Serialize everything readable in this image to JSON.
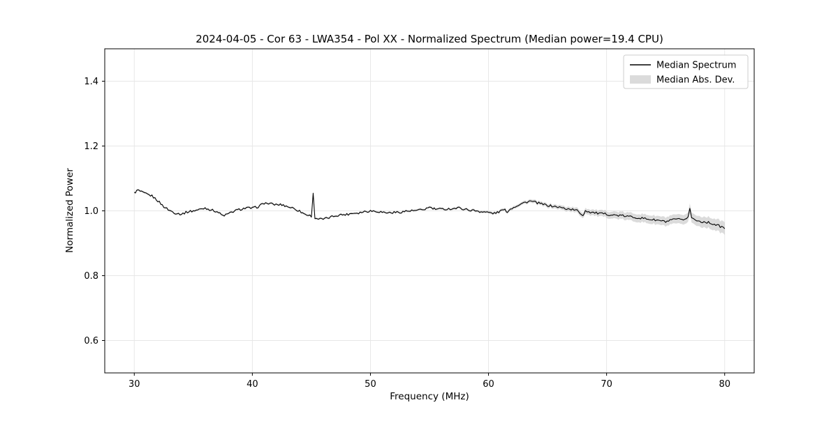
{
  "chart_data": {
    "type": "line",
    "title": "2024-04-05 - Cor 63 - LWA354 - Pol XX - Normalized Spectrum (Median power=19.4 CPU)",
    "xlabel": "Frequency (MHz)",
    "ylabel": "Normalized Power",
    "xlim": [
      27.5,
      82.5
    ],
    "ylim": [
      0.5,
      1.5
    ],
    "xticks": [
      30,
      40,
      50,
      60,
      70,
      80
    ],
    "yticks": [
      0.6,
      0.8,
      1.0,
      1.2,
      1.4
    ],
    "grid": true,
    "noise_amplitude": 0.0035,
    "colors": {
      "line": "#000000",
      "band": "#bdbdbd",
      "band_opacity": 0.55,
      "grid": "#e6e6e6",
      "axis": "#000000"
    },
    "legend": {
      "position": "upper right",
      "entries": [
        {
          "label": "Median Spectrum",
          "type": "line",
          "color": "#000000"
        },
        {
          "label": "Median Abs. Dev.",
          "type": "band",
          "color": "#bdbdbd"
        }
      ]
    },
    "series": [
      {
        "name": "Median Spectrum",
        "x": [
          30,
          30.3,
          30.6,
          31,
          31.5,
          32,
          32.5,
          33,
          33.5,
          34,
          34.5,
          35,
          35.5,
          36,
          36.5,
          37,
          37.5,
          38,
          38.5,
          39,
          39.5,
          40,
          40.5,
          41,
          41.5,
          42,
          42.5,
          43,
          43.5,
          44,
          44.5,
          45,
          45.15,
          45.3,
          45.6,
          46,
          46.5,
          47,
          47.5,
          48,
          48.5,
          49,
          49.5,
          50,
          50.5,
          51,
          51.5,
          52,
          52.5,
          53,
          53.5,
          54,
          54.5,
          55,
          55.3,
          55.6,
          56,
          56.5,
          57,
          57.5,
          58,
          58.5,
          59,
          59.5,
          60,
          60.5,
          61,
          61.3,
          61.6,
          62,
          62.5,
          63,
          63.5,
          64,
          64.5,
          65,
          65.5,
          66,
          66.5,
          67,
          67.5,
          68,
          68.2,
          68.5,
          69,
          69.5,
          70,
          70.5,
          71,
          71.5,
          72,
          72.5,
          73,
          73.5,
          74,
          74.5,
          75,
          75.5,
          76,
          76.5,
          76.9,
          77.05,
          77.2,
          77.5,
          78,
          78.5,
          79,
          79.5,
          80
        ],
        "y": [
          1.055,
          1.064,
          1.058,
          1.052,
          1.046,
          1.031,
          1.013,
          1.001,
          0.993,
          0.99,
          0.997,
          1,
          1.004,
          1.009,
          1.003,
          0.998,
          0.985,
          0.991,
          1,
          1.005,
          1.009,
          1.008,
          1.013,
          1.024,
          1.022,
          1.019,
          1.019,
          1.013,
          1.008,
          0.999,
          0.989,
          0.984,
          1.052,
          0.979,
          0.975,
          0.974,
          0.979,
          0.985,
          0.988,
          0.989,
          0.993,
          0.994,
          0.998,
          1,
          0.999,
          0.996,
          0.994,
          0.995,
          0.996,
          0.999,
          1,
          1.001,
          1.004,
          1.011,
          1.007,
          1.005,
          1.005,
          1.006,
          1.007,
          1.009,
          1.005,
          1.002,
          1,
          0.997,
          0.995,
          0.992,
          0.999,
          1.004,
          0.998,
          1.009,
          1.018,
          1.025,
          1.03,
          1.026,
          1.021,
          1.017,
          1.014,
          1.011,
          1.007,
          1.005,
          1.001,
          0.986,
          1.001,
          0.997,
          0.994,
          0.991,
          0.99,
          0.987,
          0.986,
          0.984,
          0.982,
          0.98,
          0.977,
          0.975,
          0.972,
          0.97,
          0.966,
          0.971,
          0.975,
          0.969,
          0.983,
          1.007,
          0.98,
          0.971,
          0.967,
          0.965,
          0.96,
          0.954,
          0.946
        ]
      },
      {
        "name": "Median Abs. Dev.",
        "x": [
          30,
          55,
          60,
          63,
          65,
          67,
          68,
          70,
          72,
          74,
          76,
          78,
          80
        ],
        "mad": [
          0.003,
          0.003,
          0.004,
          0.005,
          0.006,
          0.007,
          0.008,
          0.01,
          0.012,
          0.013,
          0.014,
          0.016,
          0.019
        ]
      }
    ]
  }
}
